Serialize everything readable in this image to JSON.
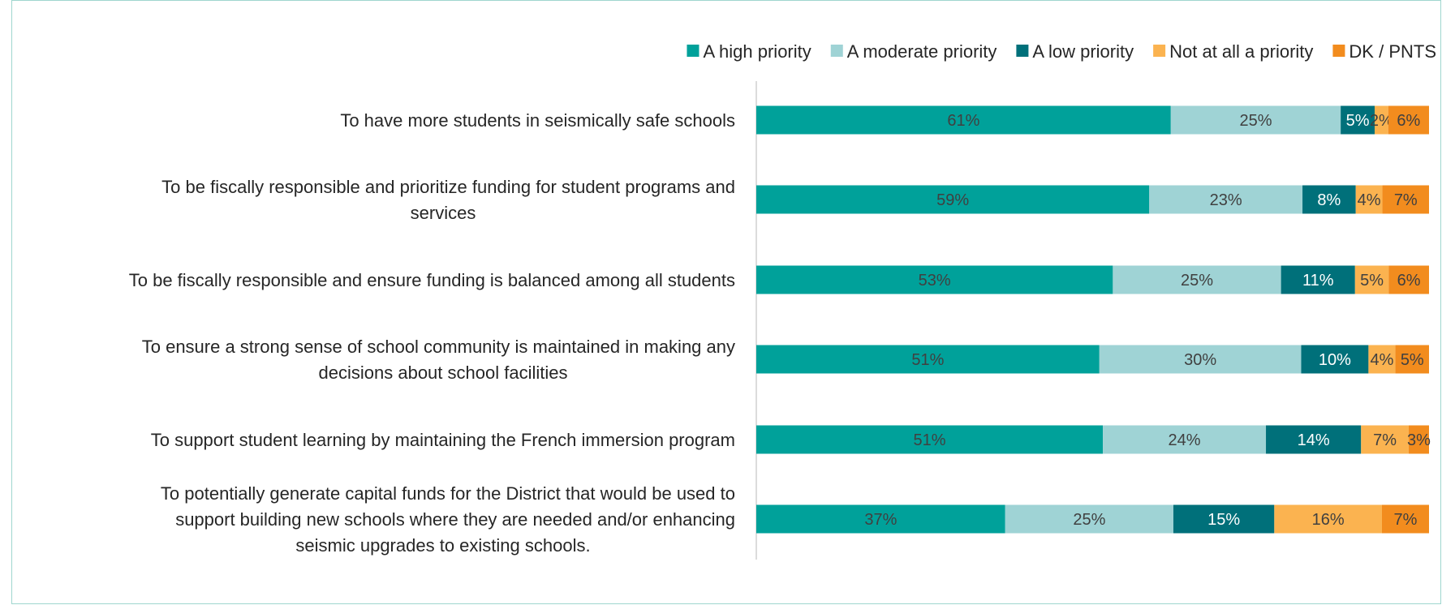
{
  "chart_data": {
    "type": "bar",
    "orientation": "horizontal",
    "stacked": true,
    "categories": [
      [
        "To have more students in seismically safe schools"
      ],
      [
        "To be fiscally responsible and prioritize funding for student programs and",
        "services"
      ],
      [
        "To be fiscally responsible and ensure funding is balanced among all students"
      ],
      [
        "To ensure a strong sense of school community is maintained in making any",
        "decisions about school facilities"
      ],
      [
        "To support student learning by maintaining the French immersion program"
      ],
      [
        "To potentially generate capital funds for the District that would be used to",
        "support building new schools where they are needed and/or enhancing",
        "seismic upgrades to existing schools."
      ]
    ],
    "series": [
      {
        "name": "A high priority",
        "color": "#00a19a",
        "values": [
          61,
          59,
          53,
          51,
          51,
          37
        ],
        "labels": [
          "61%",
          "59%",
          "53%",
          "51%",
          "51%",
          "37%"
        ]
      },
      {
        "name": "A moderate priority",
        "color": "#9fd3d5",
        "values": [
          25,
          23,
          25,
          30,
          24,
          25
        ],
        "labels": [
          "25%",
          "23%",
          "25%",
          "30%",
          "24%",
          "25%"
        ]
      },
      {
        "name": "A low priority",
        "color": "#00707a",
        "values": [
          5,
          8,
          11,
          10,
          14,
          15
        ],
        "labels": [
          "5%",
          "8%",
          "11%",
          "10%",
          "14%",
          "15%"
        ]
      },
      {
        "name": "Not at all a priority",
        "color": "#fbb350",
        "values": [
          2,
          4,
          5,
          4,
          7,
          16
        ],
        "labels": [
          "2%",
          "4%",
          "5%",
          "4%",
          "7%",
          "16%"
        ]
      },
      {
        "name": "DK / PNTS",
        "color": "#f28c1e",
        "values": [
          6,
          7,
          6,
          5,
          3,
          7
        ],
        "labels": [
          "6%",
          "7%",
          "6%",
          "5%",
          "3%",
          "7%"
        ]
      }
    ],
    "legend_position": "top-right",
    "grid": false
  }
}
